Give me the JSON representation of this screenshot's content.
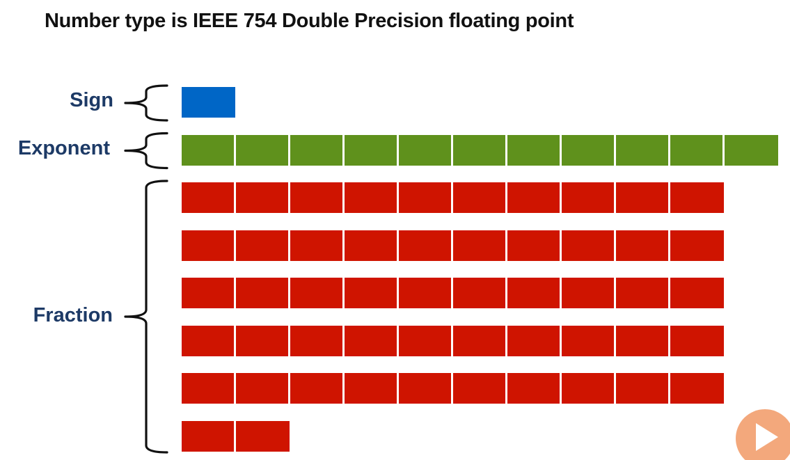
{
  "title": "Number type is IEEE 754 Double Precision floating point",
  "colors": {
    "sign": "#0066c6",
    "exponent": "#5f911c",
    "fraction": "#cf1400",
    "label": "#1d3a66",
    "cell_divider": "#ffffff",
    "play_button": "#f29a66"
  },
  "fields": [
    {
      "key": "sign",
      "label": "Sign",
      "bits": 1,
      "bits_per_row": 11
    },
    {
      "key": "exponent",
      "label": "Exponent",
      "bits": 11,
      "bits_per_row": 11
    },
    {
      "key": "fraction",
      "label": "Fraction",
      "bits": 52,
      "bits_per_row": 10
    }
  ],
  "play_icon": "play-icon"
}
